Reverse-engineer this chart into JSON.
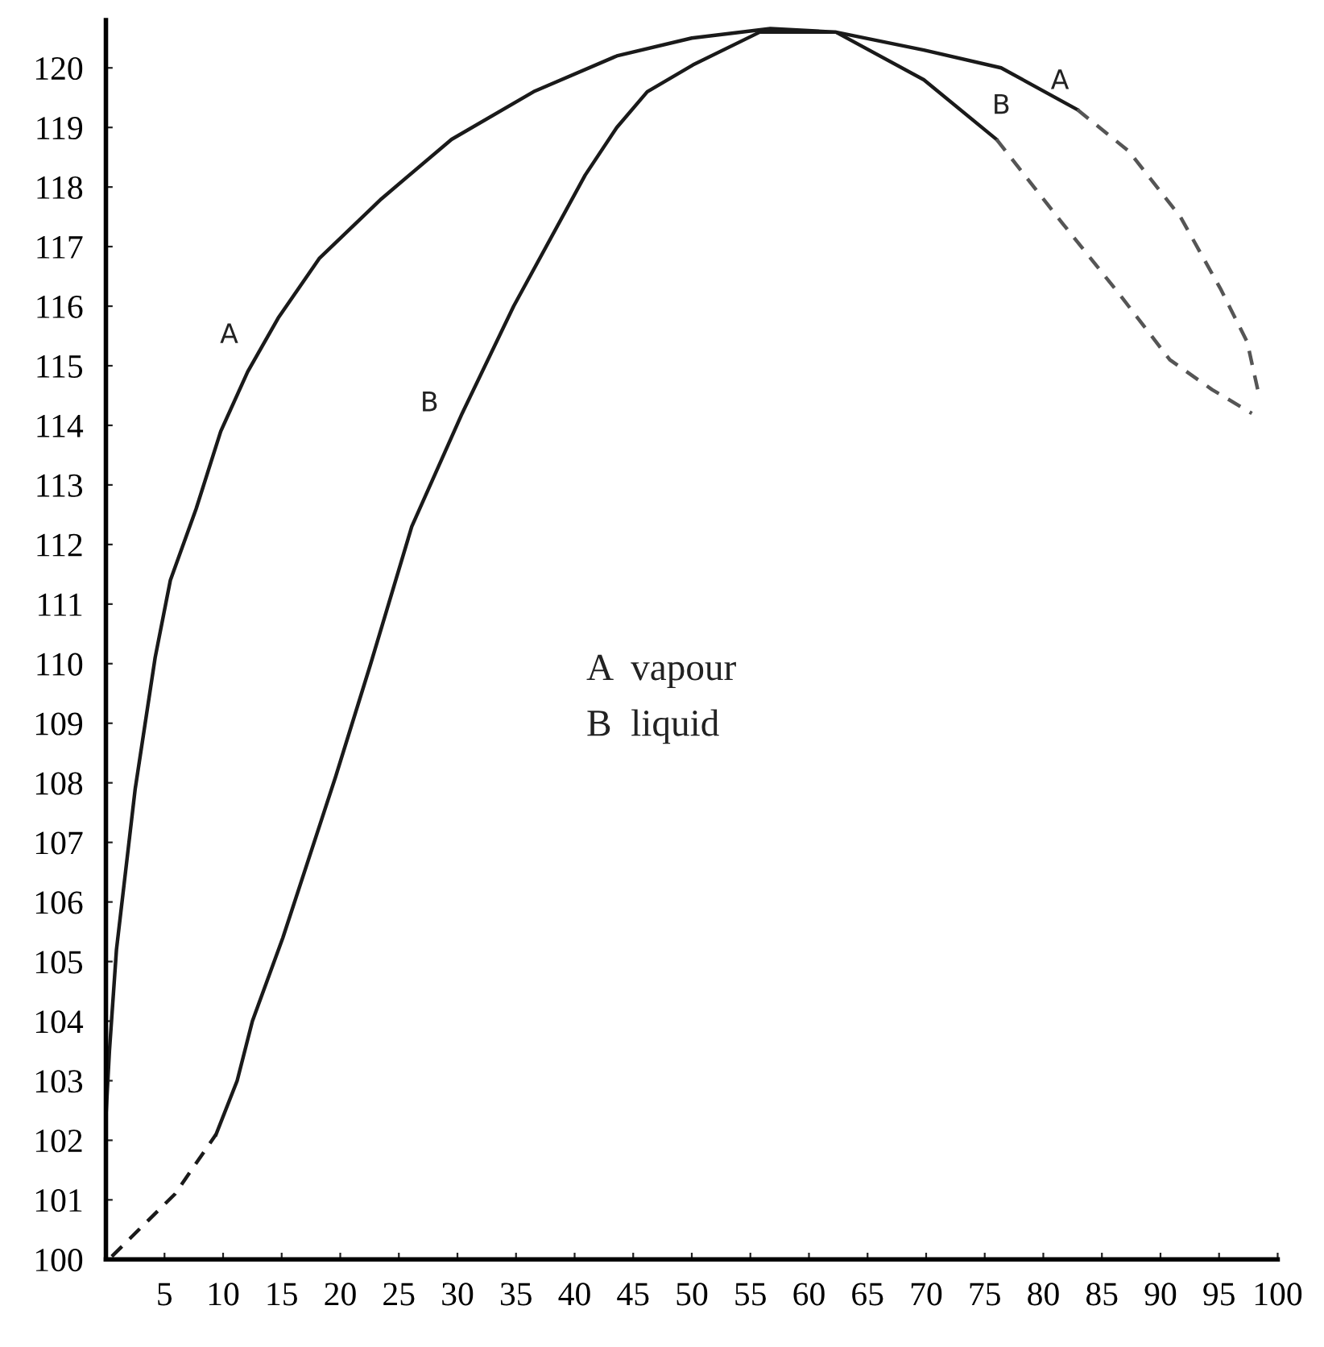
{
  "chart_data": {
    "type": "line",
    "series": [
      {
        "color": "#1a1a1a",
        "line_style": "solid",
        "x": [
          0,
          0,
          0.3,
          0.9,
          2.5,
          4.2,
          5.5,
          7.7,
          9.8,
          12.1,
          14.7,
          18.2,
          23.5,
          29.5,
          36.5,
          43.6,
          50,
          56.7,
          62.3,
          69.8,
          76.4,
          82.9
        ],
        "values": [
          100,
          102.4,
          103.5,
          105.2,
          107.9,
          110.1,
          111.4,
          112.6,
          113.9,
          114.9,
          115.8,
          116.8,
          117.8,
          118.8,
          119.6,
          120.2,
          120.5,
          120.66,
          120.6,
          120.3,
          120.0,
          119.3
        ]
      },
      {
        "color": "#555555",
        "line_style": "dashed",
        "x": [
          82.9,
          87.3,
          91.7,
          95.1,
          97.4,
          98.3
        ],
        "values": [
          119.3,
          118.6,
          117.5,
          116.3,
          115.4,
          114.6
        ]
      },
      {
        "color": "#1a1a1a",
        "line_style": "solid",
        "x": [
          9.4,
          11.2,
          12.5,
          15.1,
          19.6,
          22.6,
          26.1,
          30.4,
          34.8,
          40.9,
          43.6,
          46.2,
          50.1,
          55.8,
          62.3,
          69.8,
          76
        ],
        "values": [
          102.1,
          103.0,
          104.0,
          105.4,
          108.1,
          110.0,
          112.3,
          114.2,
          116.0,
          118.2,
          119.0,
          119.6,
          120.05,
          120.6,
          120.6,
          119.8,
          118.8
        ]
      },
      {
        "color": "#555555",
        "line_style": "dashed",
        "x": [
          76,
          81.6,
          86.5,
          90.8,
          94.4,
          97.8
        ],
        "values": [
          118.8,
          117.4,
          116.2,
          115.1,
          114.6,
          114.2
        ]
      },
      {
        "color": "#1a1a1a",
        "line_style": "dashed",
        "x": [
          0.5,
          5.9,
          9.4
        ],
        "values": [
          100.05,
          101.1,
          102.1
        ]
      }
    ],
    "annotations": [
      "A",
      "B",
      "B",
      "A",
      "A  vapour",
      "B  liquid"
    ],
    "xlim": [
      0,
      100
    ],
    "ylim": [
      100,
      120.8
    ],
    "xticks": [
      5,
      10,
      15,
      20,
      25,
      30,
      35,
      40,
      45,
      50,
      55,
      60,
      65,
      70,
      75,
      80,
      85,
      90,
      95,
      100
    ],
    "yticks": [
      100,
      101,
      102,
      103,
      104,
      105,
      106,
      107,
      108,
      109,
      110,
      111,
      112,
      113,
      114,
      115,
      116,
      117,
      118,
      119,
      120
    ],
    "grid": false,
    "legend": false,
    "marker": "none"
  }
}
